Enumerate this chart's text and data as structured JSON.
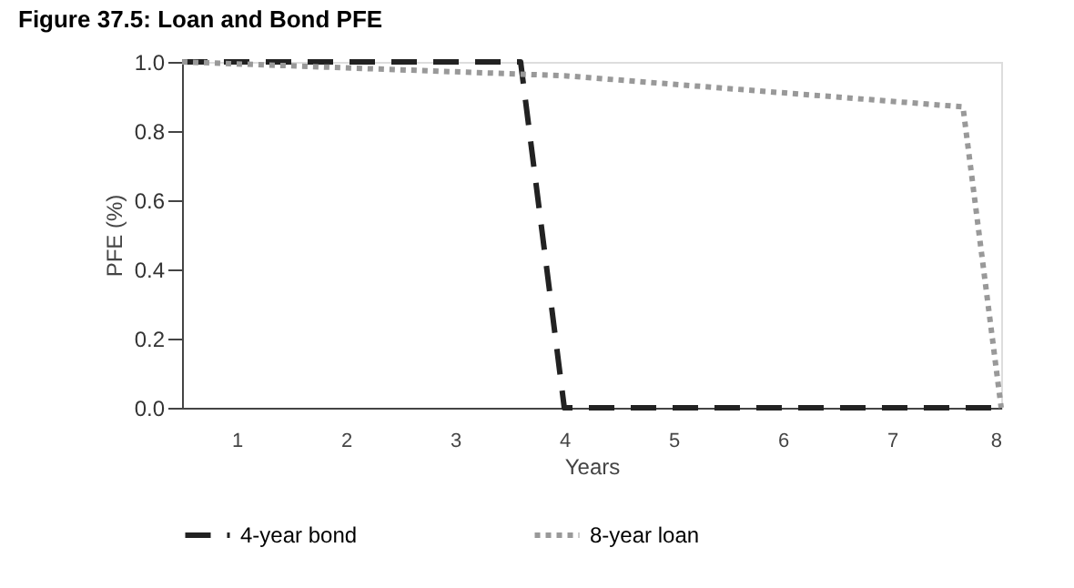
{
  "chart_data": {
    "type": "line",
    "title": "Figure 37.5: Loan and Bond PFE",
    "xlabel": "Years",
    "ylabel": "PFE (%)",
    "xlim": [
      0.5,
      8
    ],
    "xticks": [
      1,
      2,
      3,
      4,
      5,
      6,
      7,
      8
    ],
    "ylim": [
      0,
      1.0
    ],
    "yticks": [
      {
        "value": 0,
        "label": "0.0"
      },
      {
        "value": 0.2,
        "label": "0.2"
      },
      {
        "value": 0.4,
        "label": "0.4"
      },
      {
        "value": 0.6,
        "label": "0.6"
      },
      {
        "value": 0.8,
        "label": "0.8"
      },
      {
        "value": 1.0,
        "label": "1.0"
      }
    ],
    "grid": false,
    "legend": "bottom",
    "marker": "none",
    "series": [
      {
        "name": "4-year bond",
        "color": "#222222",
        "line_style": "dashed",
        "x": [
          0.5,
          3.6,
          4.0,
          8.0
        ],
        "values": [
          1.0,
          1.0,
          0.0,
          0.0
        ]
      },
      {
        "name": "8-year loan",
        "color": "#999999",
        "line_style": "dotted",
        "x": [
          0.5,
          4.0,
          7.65,
          8.0
        ],
        "values": [
          1.0,
          0.96,
          0.87,
          0.0
        ]
      }
    ]
  }
}
